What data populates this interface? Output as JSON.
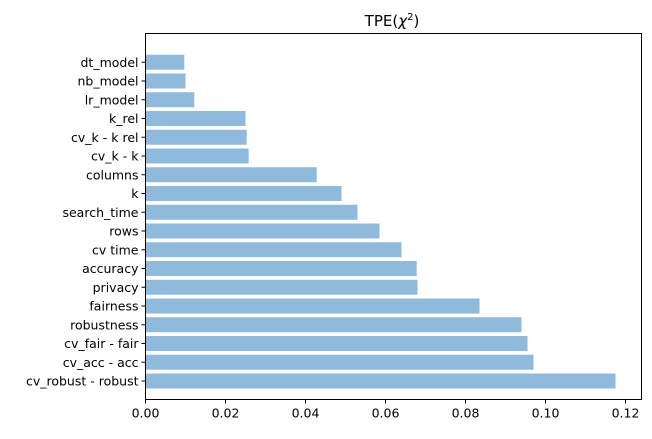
{
  "chart_data": {
    "type": "bar",
    "orientation": "horizontal",
    "title": "TPE(χ²)",
    "title_main": "TPE(",
    "title_chi": "χ",
    "title_sup": "2",
    "title_close": ")",
    "xlabel": "",
    "ylabel": "",
    "xlim": [
      0,
      0.124
    ],
    "x_ticks": [
      0.0,
      0.02,
      0.04,
      0.06,
      0.08,
      0.1,
      0.12
    ],
    "x_tick_labels": [
      "0.00",
      "0.02",
      "0.04",
      "0.06",
      "0.08",
      "0.10",
      "0.12"
    ],
    "grid": false,
    "bar_color": "#8fbadb",
    "categories": [
      "cv_robust - robust",
      "cv_acc - acc",
      "cv_fair - fair",
      "robustness",
      "fairness",
      "privacy",
      "accuracy",
      "cv time",
      "rows",
      "search_time",
      "k",
      "columns",
      "cv_k - k",
      "cv_k - k rel",
      "k_rel",
      "lr_model",
      "nb_model",
      "dt_model"
    ],
    "values": [
      0.1175,
      0.097,
      0.0955,
      0.094,
      0.0835,
      0.068,
      0.0678,
      0.064,
      0.0585,
      0.053,
      0.049,
      0.0428,
      0.0258,
      0.0253,
      0.025,
      0.0122,
      0.01,
      0.0097
    ]
  }
}
